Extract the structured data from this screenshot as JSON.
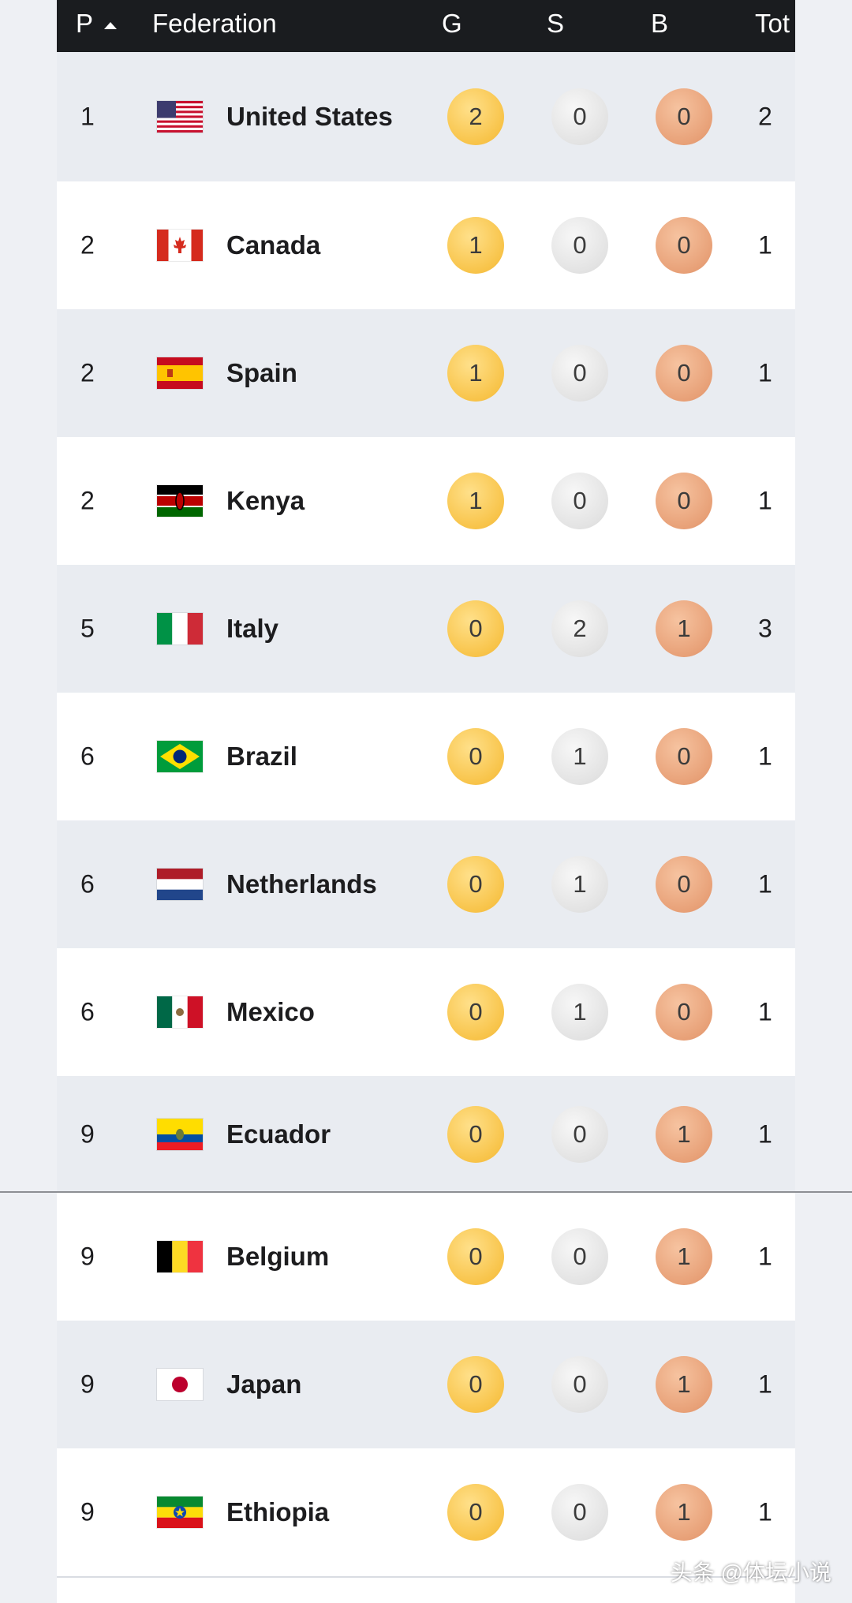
{
  "header": {
    "rank": "P",
    "federation": "Federation",
    "gold": "G",
    "silver": "S",
    "bronze": "B",
    "total": "Tot"
  },
  "rows": [
    {
      "rank": "1",
      "country": "United States",
      "flag": "us-flag-icon",
      "gold": "2",
      "silver": "0",
      "bronze": "0",
      "total": "2"
    },
    {
      "rank": "2",
      "country": "Canada",
      "flag": "canada-flag-icon",
      "gold": "1",
      "silver": "0",
      "bronze": "0",
      "total": "1"
    },
    {
      "rank": "2",
      "country": "Spain",
      "flag": "spain-flag-icon",
      "gold": "1",
      "silver": "0",
      "bronze": "0",
      "total": "1"
    },
    {
      "rank": "2",
      "country": "Kenya",
      "flag": "kenya-flag-icon",
      "gold": "1",
      "silver": "0",
      "bronze": "0",
      "total": "1"
    },
    {
      "rank": "5",
      "country": "Italy",
      "flag": "italy-flag-icon",
      "gold": "0",
      "silver": "2",
      "bronze": "1",
      "total": "3"
    },
    {
      "rank": "6",
      "country": "Brazil",
      "flag": "brazil-flag-icon",
      "gold": "0",
      "silver": "1",
      "bronze": "0",
      "total": "1"
    },
    {
      "rank": "6",
      "country": "Netherlands",
      "flag": "netherlands-flag-icon",
      "gold": "0",
      "silver": "1",
      "bronze": "0",
      "total": "1"
    },
    {
      "rank": "6",
      "country": "Mexico",
      "flag": "mexico-flag-icon",
      "gold": "0",
      "silver": "1",
      "bronze": "0",
      "total": "1"
    },
    {
      "rank": "9",
      "country": "Ecuador",
      "flag": "ecuador-flag-icon",
      "gold": "0",
      "silver": "0",
      "bronze": "1",
      "total": "1"
    },
    {
      "rank": "9",
      "country": "Belgium",
      "flag": "belgium-flag-icon",
      "gold": "0",
      "silver": "0",
      "bronze": "1",
      "total": "1"
    },
    {
      "rank": "9",
      "country": "Japan",
      "flag": "japan-flag-icon",
      "gold": "0",
      "silver": "0",
      "bronze": "1",
      "total": "1"
    },
    {
      "rank": "9",
      "country": "Ethiopia",
      "flag": "ethiopia-flag-icon",
      "gold": "0",
      "silver": "0",
      "bronze": "1",
      "total": "1"
    }
  ],
  "watermark": "头条 @体坛小说",
  "colors": {
    "header_bg": "#1a1c1f",
    "row_alt": "#e9ecf1",
    "gold": "#f8c44a",
    "silver": "#e3e3e3",
    "bronze": "#e8a178"
  }
}
